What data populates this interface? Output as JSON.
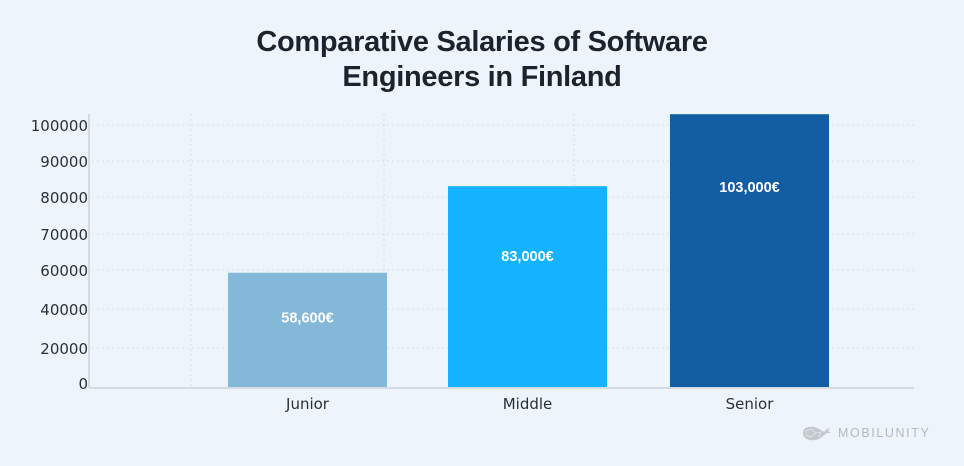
{
  "chart_data": {
    "type": "bar",
    "title": "Comparative Salaries of Software Engineers in Finland",
    "title_lines": [
      "Comparative Salaries of Software",
      "Engineers in Finland"
    ],
    "categories": [
      "Junior",
      "Middle",
      "Senior"
    ],
    "values": [
      58600,
      83000,
      103000
    ],
    "data_labels": [
      "58,600€",
      "83,000€",
      "103,000€"
    ],
    "colors": [
      "#84b8d9",
      "#14b3fd",
      "#135ea3"
    ],
    "xlabel": "",
    "ylabel": "",
    "y_ticks": [
      0,
      20000,
      40000,
      60000,
      70000,
      80000,
      90000,
      100000
    ],
    "y_tick_labels": [
      "0",
      "20000",
      "40000",
      "60000",
      "70000",
      "80000",
      "90000",
      "100000"
    ],
    "ylim": [
      0,
      103000
    ],
    "grid": true,
    "legend": "none"
  },
  "brand": {
    "name": "MOBILUNITY",
    "logo_icon": "whale-icon"
  },
  "colors": {
    "background": "#edf4fb",
    "text": "#1c232d",
    "grid": "#dde3ea",
    "axis": "#d5dbe2"
  }
}
